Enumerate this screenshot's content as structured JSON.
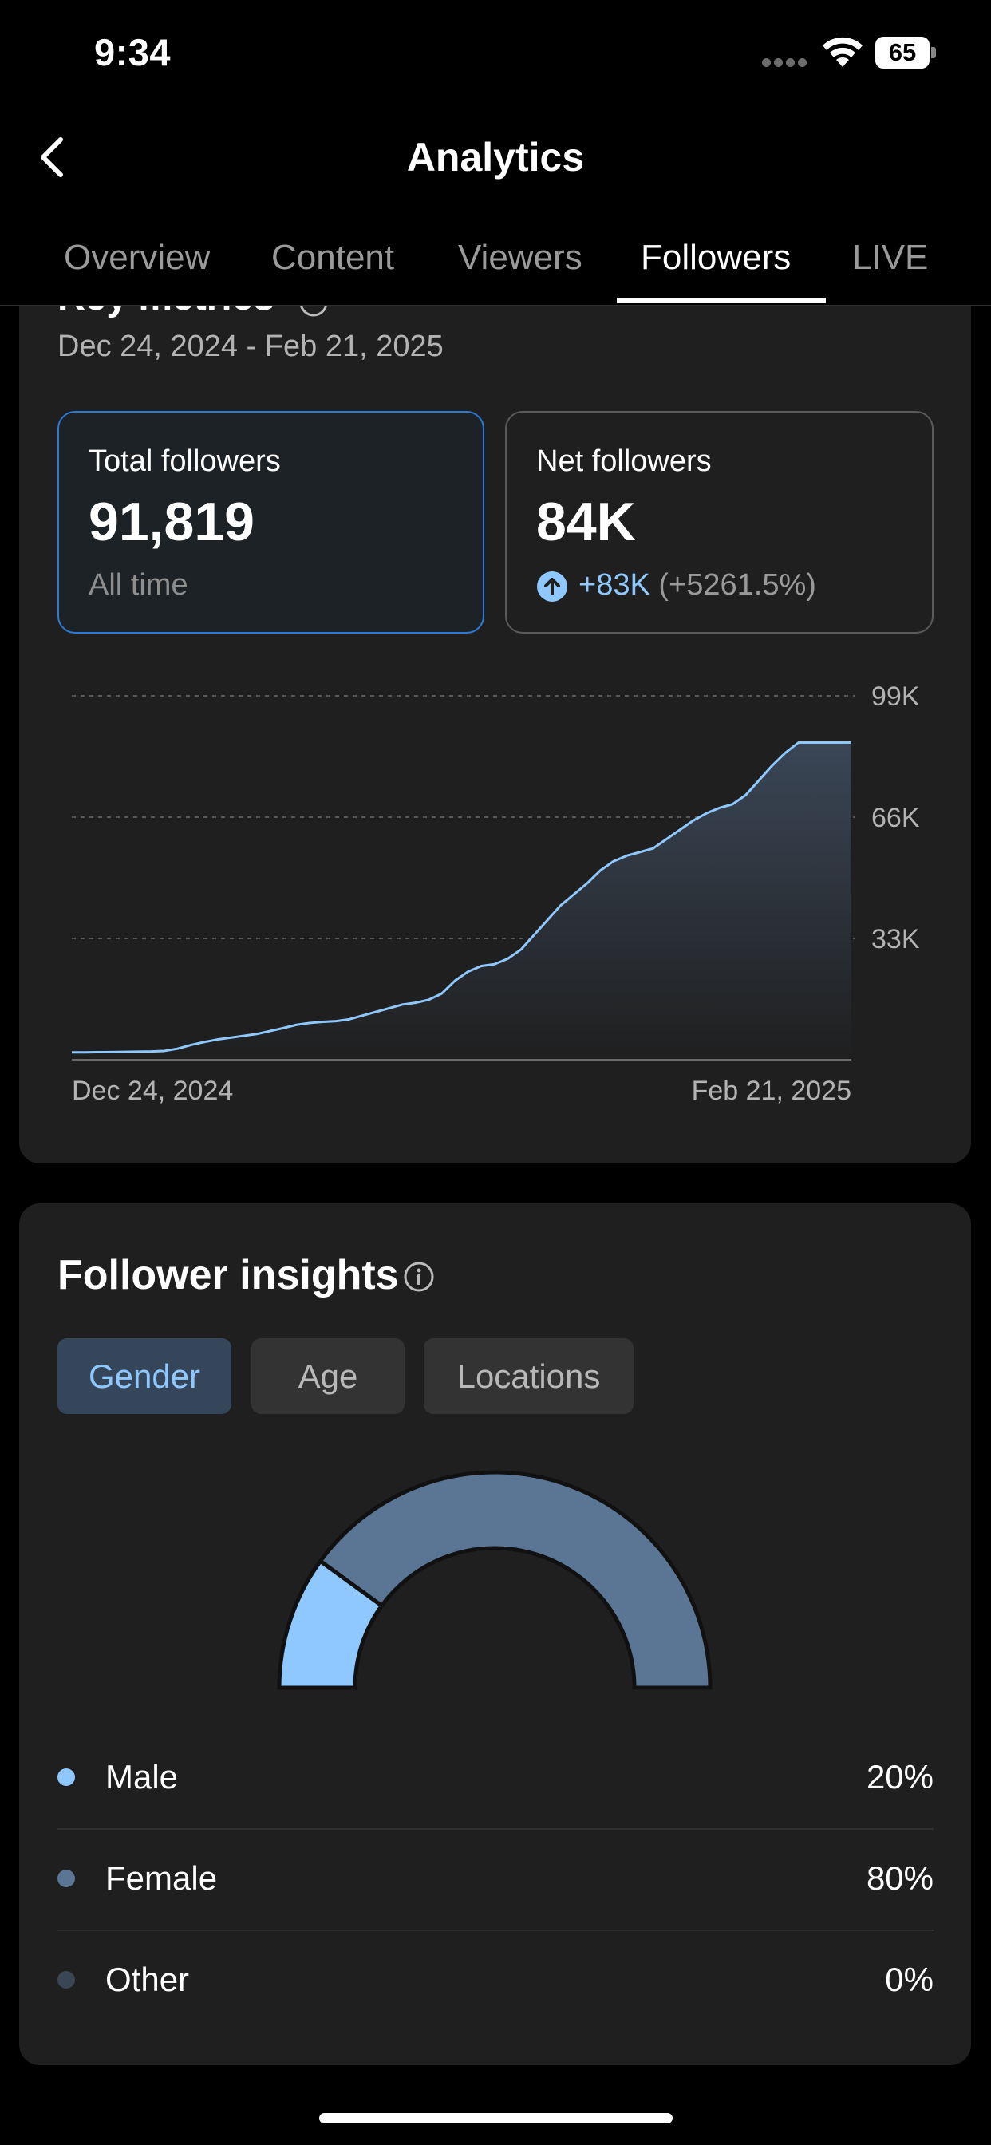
{
  "status": {
    "time": "9:34",
    "battery": "65"
  },
  "header": {
    "title": "Analytics"
  },
  "tabs": [
    {
      "label": "Overview"
    },
    {
      "label": "Content"
    },
    {
      "label": "Viewers"
    },
    {
      "label": "Followers",
      "active": true
    },
    {
      "label": "LIVE"
    }
  ],
  "key_metrics": {
    "title": "Key metrics",
    "date_range": "Dec 24, 2024 - Feb 21, 2025",
    "total": {
      "label": "Total followers",
      "value": "91,819",
      "sub": "All time"
    },
    "net": {
      "label": "Net followers",
      "value": "84K",
      "delta": "+83K",
      "delta_pct": "(+5261.5%)"
    }
  },
  "chart_data": {
    "type": "area",
    "x_start_label": "Dec 24, 2024",
    "x_end_label": "Feb 21, 2025",
    "y_ticks": [
      "99K",
      "66K",
      "33K"
    ],
    "ylim": [
      0,
      99000
    ],
    "grid": true,
    "series": [
      {
        "x": [
          "Dec 24",
          "Dec 25",
          "Dec 26",
          "Dec 27",
          "Dec 28",
          "Dec 29",
          "Dec 30",
          "Dec 31",
          "Jan 1",
          "Jan 2",
          "Jan 3",
          "Jan 4",
          "Jan 5",
          "Jan 6",
          "Jan 7",
          "Jan 8",
          "Jan 9",
          "Jan 10",
          "Jan 11",
          "Jan 12",
          "Jan 13",
          "Jan 14",
          "Jan 15",
          "Jan 16",
          "Jan 17",
          "Jan 18",
          "Jan 19",
          "Jan 20",
          "Jan 21",
          "Jan 22",
          "Jan 23",
          "Jan 24",
          "Jan 25",
          "Jan 26",
          "Jan 27",
          "Jan 28",
          "Jan 29",
          "Jan 30",
          "Jan 31",
          "Feb 1",
          "Feb 2",
          "Feb 3",
          "Feb 4",
          "Feb 5",
          "Feb 6",
          "Feb 7",
          "Feb 8",
          "Feb 9",
          "Feb 10",
          "Feb 11",
          "Feb 12",
          "Feb 13",
          "Feb 14",
          "Feb 15",
          "Feb 16",
          "Feb 17",
          "Feb 18",
          "Feb 19",
          "Feb 20",
          "Feb 21"
        ],
        "values": [
          2000,
          2000,
          2050,
          2100,
          2150,
          2200,
          2250,
          2400,
          3000,
          4000,
          4800,
          5500,
          6000,
          6500,
          7000,
          7800,
          8600,
          9500,
          10000,
          10300,
          10500,
          11000,
          12000,
          13000,
          14000,
          15000,
          15500,
          16300,
          18000,
          21500,
          24000,
          25500,
          26000,
          27500,
          30000,
          34000,
          38000,
          42000,
          45000,
          48000,
          51500,
          54000,
          55500,
          56500,
          57500,
          60000,
          62500,
          65000,
          67000,
          68500,
          69500,
          72000,
          76000,
          80000,
          83500,
          86300,
          86300,
          86300,
          86300,
          86300
        ]
      }
    ]
  },
  "insights": {
    "title": "Follower insights",
    "pills": [
      {
        "label": "Gender",
        "active": true
      },
      {
        "label": "Age"
      },
      {
        "label": "Locations"
      }
    ],
    "legend": [
      {
        "label": "Male",
        "pct": "20%",
        "value": 20,
        "color": "#8ec8ff"
      },
      {
        "label": "Female",
        "pct": "80%",
        "value": 80,
        "color": "#5a7694"
      },
      {
        "label": "Other",
        "pct": "0%",
        "value": 0,
        "color": "#3b4655"
      }
    ]
  },
  "icons": [
    "back-arrow-icon",
    "info-icon",
    "arrow-up-circle-icon",
    "wifi-icon",
    "battery-icon",
    "signal-icon"
  ]
}
